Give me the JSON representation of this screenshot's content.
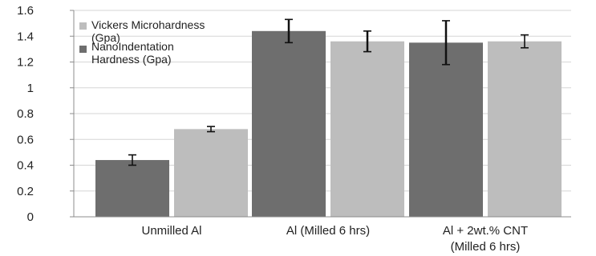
{
  "chart_data": {
    "type": "bar",
    "title": "",
    "xlabel": "",
    "ylabel": "",
    "ylim": [
      0,
      1.6
    ],
    "yticks": [
      "0",
      "0.2",
      "0.4",
      "0.6",
      "0.8",
      "1",
      "1.2",
      "1.4",
      "1.6"
    ],
    "grid": true,
    "legend_position": "top-left",
    "categories": [
      [
        "Unmilled Al"
      ],
      [
        "Al (Milled 6 hrs)"
      ],
      [
        "Al + 2wt.% CNT",
        "(Milled 6 hrs)"
      ]
    ],
    "series": [
      {
        "name": [
          "Vickers Microhardness",
          "(Gpa)"
        ],
        "color": "#bdbdbd",
        "values": [
          0.68,
          1.36,
          1.36
        ],
        "errors": [
          0.02,
          0.08,
          0.05
        ]
      },
      {
        "name": [
          "NanoIndentation",
          "Hardness (Gpa)"
        ],
        "color": "#6e6e6e",
        "values": [
          0.44,
          1.44,
          1.35
        ],
        "errors": [
          0.04,
          0.09,
          0.17
        ]
      }
    ],
    "bar_order": [
      1,
      0
    ]
  }
}
